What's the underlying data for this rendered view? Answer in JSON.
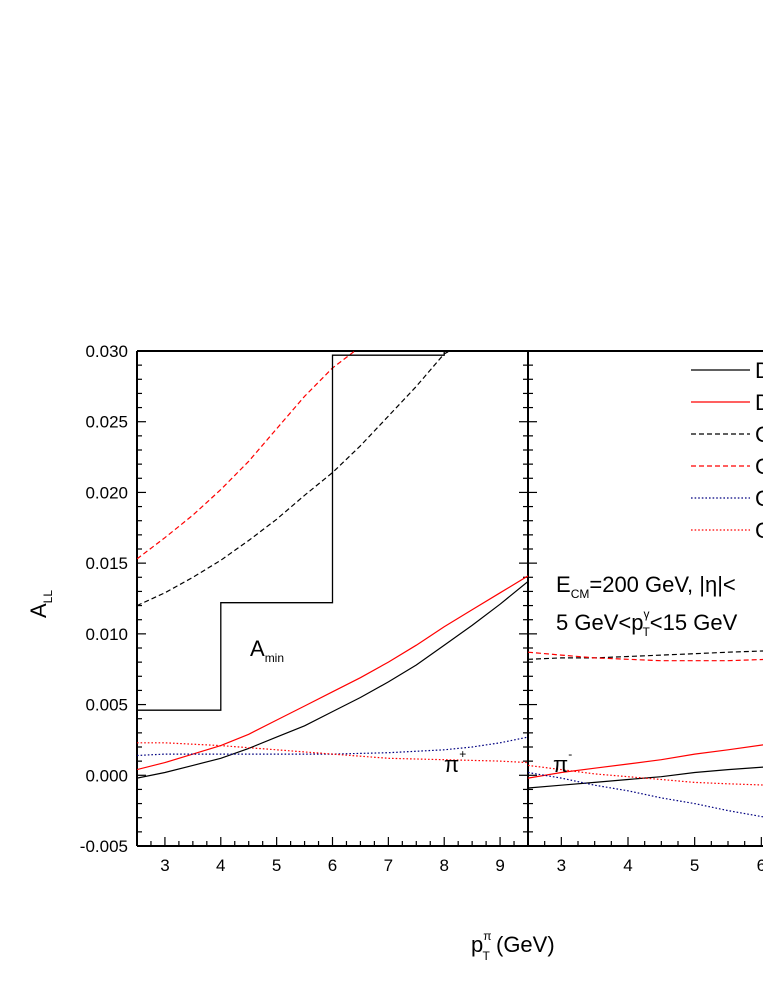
{
  "chart_data": [
    {
      "panel": "left",
      "type": "line",
      "particle_label": "π",
      "particle_charge": "+",
      "xlim": [
        2.5,
        9.5
      ],
      "ylim": [
        -0.005,
        0.03
      ],
      "x_ticks": [
        3,
        4,
        5,
        6,
        7,
        8,
        9
      ],
      "series": [
        {
          "color": "#000000",
          "dash": "solid",
          "x": [
            2.5,
            3,
            3.5,
            4,
            4.5,
            5,
            5.5,
            6,
            6.5,
            7,
            7.5,
            8,
            8.5,
            9,
            9.5
          ],
          "y": [
            -0.0002,
            0.0002,
            0.0007,
            0.0012,
            0.0019,
            0.0027,
            0.0035,
            0.0045,
            0.0055,
            0.0066,
            0.0078,
            0.0092,
            0.0106,
            0.0121,
            0.0137
          ]
        },
        {
          "color": "#ff0000",
          "dash": "solid",
          "x": [
            2.5,
            3,
            3.5,
            4,
            4.5,
            5,
            5.5,
            6,
            6.5,
            7,
            7.5,
            8,
            8.5,
            9,
            9.5
          ],
          "y": [
            0.0004,
            0.0009,
            0.0015,
            0.0021,
            0.0029,
            0.0039,
            0.0049,
            0.0059,
            0.0069,
            0.008,
            0.0092,
            0.0105,
            0.0117,
            0.0129,
            0.0141
          ]
        },
        {
          "color": "#000000",
          "dash": "dashed",
          "x": [
            2.5,
            3,
            3.5,
            4,
            4.5,
            5,
            5.5,
            6,
            6.5,
            7,
            7.5,
            8,
            8.1
          ],
          "y": [
            0.012,
            0.0129,
            0.014,
            0.0152,
            0.0166,
            0.0181,
            0.0198,
            0.0214,
            0.0233,
            0.0254,
            0.0275,
            0.0298,
            0.03
          ]
        },
        {
          "color": "#ff0000",
          "dash": "dashed",
          "x": [
            2.5,
            3,
            3.5,
            4,
            4.5,
            5,
            5.5,
            6,
            6.4
          ],
          "y": [
            0.0153,
            0.0168,
            0.0184,
            0.0202,
            0.0222,
            0.0245,
            0.0268,
            0.0288,
            0.03
          ]
        },
        {
          "color": "#000080",
          "dash": "dotted",
          "x": [
            2.5,
            3,
            4,
            5,
            6,
            7,
            8,
            8.5,
            9,
            9.5
          ],
          "y": [
            0.0014,
            0.0015,
            0.0015,
            0.0015,
            0.0015,
            0.0016,
            0.0018,
            0.002,
            0.0023,
            0.0027
          ]
        },
        {
          "color": "#ff0000",
          "dash": "dotted",
          "x": [
            2.5,
            3,
            4,
            5,
            6,
            7,
            8,
            9,
            9.5
          ],
          "y": [
            0.0023,
            0.0023,
            0.0021,
            0.0018,
            0.0015,
            0.0012,
            0.0011,
            0.001,
            0.0009
          ]
        }
      ],
      "step": {
        "label": "A",
        "label_sub": "min",
        "color": "#000000",
        "points": [
          [
            2.5,
            0.0046
          ],
          [
            4.0,
            0.0046
          ],
          [
            4.0,
            0.0122
          ],
          [
            6.0,
            0.0122
          ],
          [
            6.0,
            0.0297
          ],
          [
            8.0,
            0.0297
          ],
          [
            8.0,
            0.03
          ]
        ]
      }
    },
    {
      "panel": "right",
      "type": "line",
      "particle_label": "π",
      "particle_charge": "-",
      "xlim": [
        2.5,
        6.1
      ],
      "ylim": [
        -0.005,
        0.03
      ],
      "x_ticks": [
        3,
        4,
        5,
        6
      ],
      "series": [
        {
          "color": "#000000",
          "dash": "solid",
          "x": [
            2.5,
            3,
            3.5,
            4,
            4.5,
            5,
            5.5,
            6.1
          ],
          "y": [
            -0.0009,
            -0.0007,
            -0.0005,
            -0.0003,
            -0.0001,
            0.0002,
            0.0004,
            0.0006
          ]
        },
        {
          "color": "#ff0000",
          "dash": "solid",
          "x": [
            2.5,
            3,
            3.5,
            4,
            4.5,
            5,
            5.5,
            6.1
          ],
          "y": [
            -0.0002,
            0.0002,
            0.0005,
            0.0008,
            0.0011,
            0.0015,
            0.0018,
            0.0022
          ]
        },
        {
          "color": "#000000",
          "dash": "dashed",
          "x": [
            2.5,
            3,
            3.5,
            4,
            4.5,
            5,
            5.5,
            6.1
          ],
          "y": [
            0.0082,
            0.0083,
            0.0083,
            0.0084,
            0.0085,
            0.0086,
            0.0087,
            0.0088
          ]
        },
        {
          "color": "#ff0000",
          "dash": "dashed",
          "x": [
            2.5,
            3,
            3.5,
            4,
            4.5,
            5,
            5.5,
            6.1
          ],
          "y": [
            0.0087,
            0.0085,
            0.0083,
            0.0082,
            0.0081,
            0.0081,
            0.0081,
            0.0082
          ]
        },
        {
          "color": "#000080",
          "dash": "dotted",
          "x": [
            2.5,
            3,
            3.5,
            4,
            4.5,
            5,
            5.5,
            6.1
          ],
          "y": [
            0.0002,
            -0.0002,
            -0.0007,
            -0.0011,
            -0.0016,
            -0.002,
            -0.0025,
            -0.003
          ]
        },
        {
          "color": "#ff0000",
          "dash": "dotted",
          "x": [
            2.5,
            3,
            3.5,
            4,
            4.5,
            5,
            5.5,
            6.1
          ],
          "y": [
            0.0007,
            0.0004,
            0.0001,
            -0.0001,
            -0.0003,
            -0.0005,
            -0.0006,
            -0.0007
          ]
        }
      ]
    }
  ],
  "y_ticks": [
    -0.005,
    0.0,
    0.005,
    0.01,
    0.015,
    0.02,
    0.025,
    0.03
  ],
  "y_tick_labels": [
    "-0.005",
    "0.000",
    "0.005",
    "0.010",
    "0.015",
    "0.020",
    "0.025",
    "0.030"
  ],
  "ylabel": {
    "main": "A",
    "sub": "LL"
  },
  "xlabel": {
    "p": "p",
    "sup": "π",
    "sub": "T",
    "rest": " (GeV)"
  },
  "legend": {
    "placement": "top-right",
    "entries": [
      {
        "text": "D",
        "color": "#000000",
        "dash": "solid"
      },
      {
        "text": "D",
        "color": "#ff0000",
        "dash": "solid"
      },
      {
        "text": "C",
        "color": "#000000",
        "dash": "dashed"
      },
      {
        "text": "C",
        "color": "#ff0000",
        "dash": "dashed"
      },
      {
        "text": "C",
        "color": "#000080",
        "dash": "dotted"
      },
      {
        "text": "C",
        "color": "#ff0000",
        "dash": "dotted"
      }
    ]
  },
  "annotations": {
    "line1": {
      "e": "E",
      "e_sub": "CM",
      "rest": "=200 GeV, |η|<"
    },
    "line2": {
      "pre": "5 GeV<p",
      "p_sup": "γ",
      "p_sub": "T",
      "post": "<15 GeV"
    }
  }
}
